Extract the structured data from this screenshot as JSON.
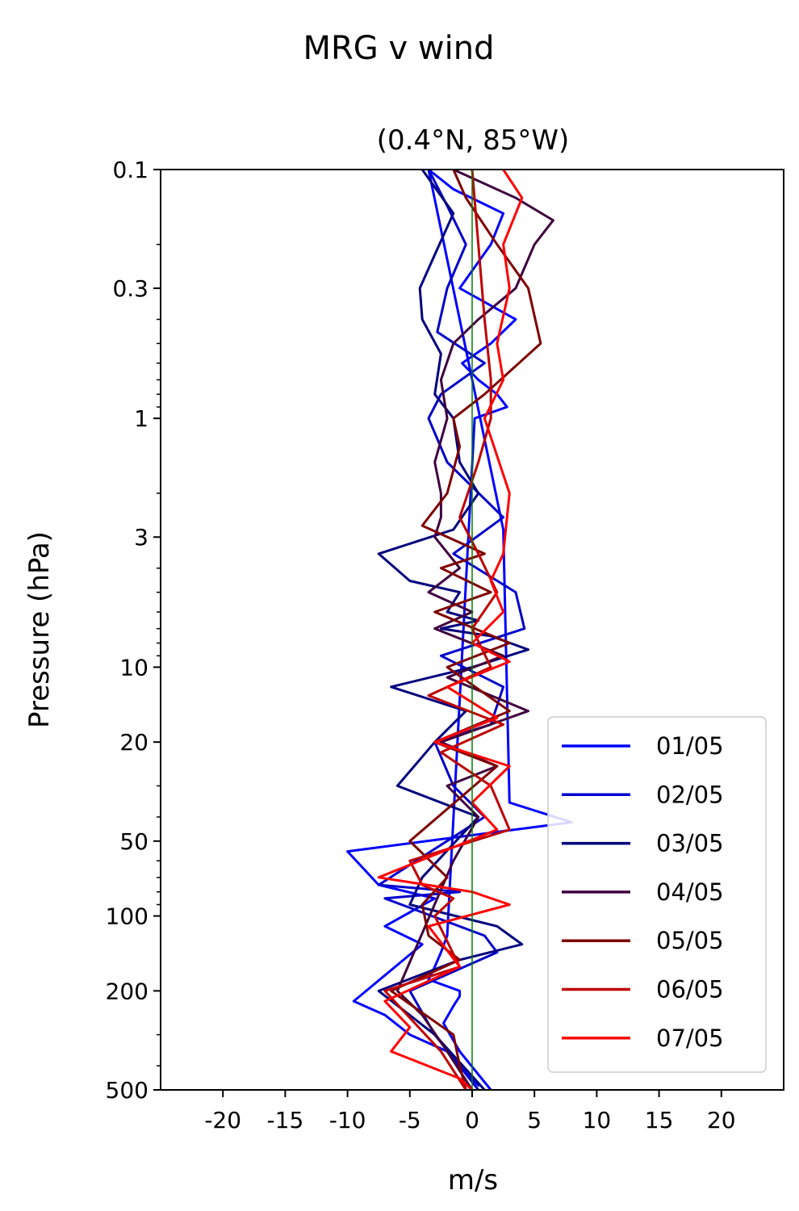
{
  "figure": {
    "title": "MRG v wind"
  },
  "chart_data": {
    "type": "line",
    "title": "MRG v wind",
    "subtitle": "(0.4°N, 85°W)",
    "xlabel": "m/s",
    "ylabel": "Pressure (hPa)",
    "xlim": [
      -25,
      25
    ],
    "ylim": [
      500,
      0.1
    ],
    "y_scale": "log",
    "y_inverted": true,
    "x_ticks": [
      -20,
      -15,
      -10,
      -5,
      0,
      5,
      10,
      15,
      20
    ],
    "x_tick_labels": [
      "-20",
      "-15",
      "-10",
      "-5",
      "0",
      "5",
      "10",
      "15",
      "20"
    ],
    "y_ticks": [
      0.1,
      0.3,
      1,
      3,
      10,
      20,
      50,
      100,
      200,
      500
    ],
    "y_tick_labels": [
      "0.1",
      "0.3",
      "1",
      "3",
      "10",
      "20",
      "50",
      "100",
      "200",
      "500"
    ],
    "grid": false,
    "legend_position": "lower-right",
    "zero_line": {
      "x": 0,
      "color": "#007f00"
    },
    "series": [
      {
        "name": "01/05",
        "color": "#0000ff",
        "x": [
          1.5,
          -1.0,
          -2.3,
          -1.5,
          -1.0,
          -1.0,
          -3.5,
          -3.0,
          -2.5,
          -2.0,
          0.2,
          2.8,
          2.0,
          0.5,
          -0.8,
          1.5,
          3.5,
          -1.0,
          1.5,
          2.5,
          -1.5,
          -3.5,
          2.5,
          3.0,
          8.0,
          -10.0,
          -7.5,
          -3.0,
          -7.0,
          -4.0,
          -9.5,
          -7.0,
          -5.0,
          -2.0,
          -1.0,
          0.5
        ],
        "y": [
          500,
          350,
          270,
          230,
          210,
          200,
          180,
          160,
          140,
          120,
          1.0,
          0.9,
          0.8,
          0.7,
          0.6,
          0.5,
          0.4,
          0.3,
          0.2,
          0.15,
          0.12,
          0.1,
          2.8,
          35,
          42,
          55,
          75,
          85,
          110,
          130,
          220,
          250,
          300,
          350,
          400,
          480
        ]
      },
      {
        "name": "02/05",
        "color": "#0000cc",
        "x": [
          -3.5,
          -2.0,
          -0.5,
          -2.0,
          -2.8,
          1.0,
          -2.5,
          -3.5,
          -2.0,
          2.5,
          -1.5,
          3.5,
          4.2,
          -2.5,
          2.5,
          1.5,
          -3.0,
          -1.5,
          1.0,
          -7.5,
          -1.0,
          -7.0,
          1.0,
          2.0,
          -5.0,
          -3.0,
          0.5
        ],
        "y": [
          0.1,
          0.14,
          0.2,
          0.3,
          0.45,
          0.6,
          0.8,
          1.0,
          1.5,
          2.5,
          3.5,
          5.0,
          7.0,
          9.0,
          12.0,
          17.0,
          20.0,
          30.0,
          40.0,
          75.0,
          80.0,
          85.0,
          120.0,
          140.0,
          200.0,
          300.0,
          500.0
        ]
      },
      {
        "name": "03/05",
        "color": "#00007f",
        "x": [
          -4.0,
          -1.5,
          -3.0,
          -4.2,
          -4.0,
          -2.5,
          -3.0,
          -1.5,
          -1.0,
          0.5,
          -1.5,
          -7.5,
          -5.0,
          -1.0,
          -2.0,
          0.5,
          -2.5,
          1.5,
          4.5,
          0.0,
          -6.5,
          -0.5,
          -3.0,
          -6.0,
          0.5,
          -4.0,
          -5.0,
          2.0,
          4.0,
          -1.0,
          -7.5,
          -3.0,
          1.0
        ],
        "y": [
          0.1,
          0.15,
          0.22,
          0.3,
          0.4,
          0.55,
          0.8,
          1.0,
          1.5,
          2.0,
          2.8,
          3.5,
          4.5,
          5.0,
          6.0,
          6.5,
          7.0,
          7.5,
          8.5,
          10.0,
          12.0,
          15.0,
          20.0,
          30.0,
          40.0,
          70.0,
          90.0,
          110.0,
          130.0,
          150.0,
          200.0,
          300.0,
          500.0
        ]
      },
      {
        "name": "04/05",
        "color": "#3f003f",
        "x": [
          -1.5,
          3.5,
          6.5,
          5.0,
          3.5,
          0.5,
          -1.5,
          -2.5,
          -2.0,
          -3.0,
          -2.5,
          -2.5,
          -3.0,
          -1.0,
          -3.5,
          0.0,
          -3.0,
          2.5,
          -2.0,
          4.5,
          -2.5,
          2.0,
          -2.0,
          0.5,
          -1.5,
          -6.0,
          -4.0,
          -2.0,
          0.0
        ],
        "y": [
          0.1,
          0.13,
          0.16,
          0.2,
          0.3,
          0.4,
          0.5,
          0.7,
          1.0,
          1.5,
          2.0,
          2.5,
          3.0,
          4.0,
          5.0,
          6.0,
          7.0,
          9.0,
          11.0,
          15.0,
          20.0,
          25.0,
          30.0,
          40.0,
          60.0,
          200.0,
          250.0,
          350.0,
          500.0
        ]
      },
      {
        "name": "05/05",
        "color": "#7f0000",
        "x": [
          -1.5,
          -0.5,
          2.0,
          4.5,
          5.5,
          1.0,
          -1.5,
          -1.0,
          -2.0,
          -4.0,
          1.0,
          -2.5,
          1.5,
          -3.0,
          3.0,
          -2.0,
          3.0,
          -3.0,
          2.0,
          -5.0,
          -2.0,
          -4.0,
          -3.5,
          -1.0,
          -6.5,
          -1.5,
          -1.0,
          -0.5
        ],
        "y": [
          0.1,
          0.13,
          0.2,
          0.3,
          0.5,
          0.8,
          1.0,
          1.3,
          2.0,
          2.7,
          3.5,
          4.0,
          5.0,
          6.0,
          8.0,
          10.0,
          15.0,
          20.0,
          25.0,
          50.0,
          70.0,
          90.0,
          120.0,
          150.0,
          200.0,
          300.0,
          400.0,
          500.0
        ]
      },
      {
        "name": "06/05",
        "color": "#bf0000",
        "x": [
          0.0,
          0.5,
          1.0,
          1.5,
          1.5,
          0.5,
          -1.0,
          0.5,
          2.0,
          0.0,
          1.5,
          -3.5,
          2.5,
          -2.5,
          1.5,
          3.0,
          -5.0,
          -4.0,
          -1.5,
          -3.0,
          -1.0,
          -7.0,
          -2.5,
          -0.5
        ],
        "y": [
          0.1,
          0.2,
          0.4,
          0.7,
          1.0,
          1.5,
          2.5,
          3.5,
          5.0,
          7.0,
          10.0,
          13.0,
          17.0,
          22.0,
          30.0,
          45.0,
          60.0,
          75.0,
          85.0,
          100.0,
          160.0,
          200.0,
          350.0,
          500.0
        ]
      },
      {
        "name": "07/05",
        "color": "#ff0000",
        "x": [
          2.5,
          4.0,
          2.5,
          3.0,
          2.0,
          2.5,
          1.0,
          3.0,
          2.5,
          1.5,
          2.5,
          0.0,
          3.0,
          -2.0,
          2.0,
          -3.0,
          3.0,
          0.0,
          2.0,
          -7.5,
          0.0,
          3.0,
          -3.5,
          -1.0,
          -7.0,
          -5.0,
          -6.5,
          -1.0,
          0.0
        ],
        "y": [
          0.1,
          0.13,
          0.2,
          0.3,
          0.5,
          0.7,
          1.0,
          2.0,
          3.5,
          4.5,
          6.0,
          8.0,
          9.5,
          12.0,
          16.0,
          20.0,
          25.0,
          35.0,
          45.0,
          70.0,
          80.0,
          90.0,
          110.0,
          160.0,
          220.0,
          280.0,
          350.0,
          450.0,
          500.0
        ]
      }
    ]
  }
}
